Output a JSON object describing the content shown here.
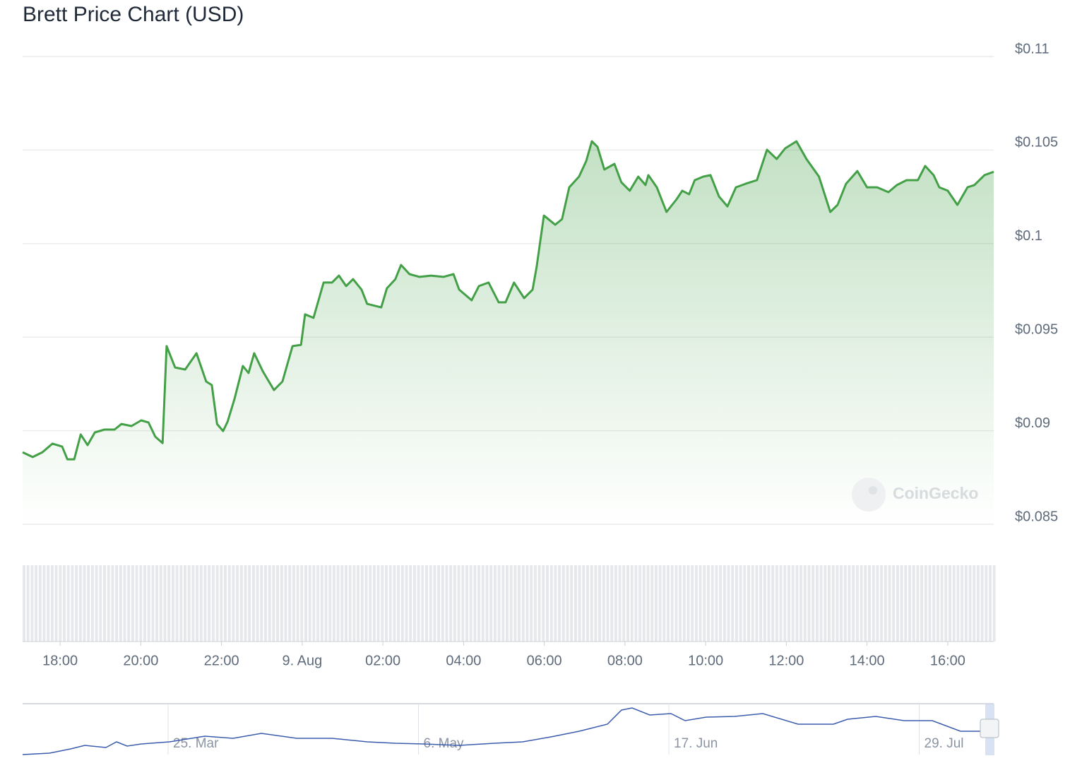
{
  "chart_data": {
    "type": "line",
    "title": "Brett Price Chart (USD)",
    "x": [
      17.07,
      17.32,
      17.56,
      17.81,
      18.05,
      18.18,
      18.35,
      18.51,
      18.68,
      18.86,
      19.1,
      19.35,
      19.52,
      19.77,
      20.01,
      20.19,
      20.36,
      20.54,
      20.64,
      20.85,
      21.1,
      21.38,
      21.62,
      21.76,
      21.89,
      22.04,
      22.15,
      22.32,
      22.53,
      22.67,
      22.81,
      23.02,
      23.3,
      23.51,
      23.76,
      23.97,
      24.07,
      24.28,
      24.53,
      24.74,
      24.91,
      25.09,
      25.26,
      25.47,
      25.61,
      25.96,
      26.1,
      26.31,
      26.45,
      26.66,
      26.91,
      27.19,
      27.5,
      27.75,
      27.89,
      28.2,
      28.38,
      28.62,
      28.87,
      29.04,
      29.25,
      29.5,
      29.71,
      29.81,
      29.99,
      30.27,
      30.44,
      30.62,
      30.86,
      31.04,
      31.18,
      31.32,
      31.49,
      31.74,
      31.91,
      32.12,
      32.33,
      32.51,
      32.58,
      32.79,
      33.03,
      33.28,
      33.42,
      33.59,
      33.73,
      33.94,
      34.12,
      34.33,
      34.54,
      34.75,
      34.99,
      35.27,
      35.52,
      35.76,
      35.97,
      36.25,
      36.5,
      36.81,
      37.09,
      37.27,
      37.48,
      37.76,
      38.0,
      38.25,
      38.53,
      38.74,
      38.98,
      39.26,
      39.44,
      39.65,
      39.79,
      40.0,
      40.24,
      40.49,
      40.66,
      40.91,
      41.14
    ],
    "values": [
      0.08885,
      0.08859,
      0.08885,
      0.08931,
      0.08915,
      0.08847,
      0.08847,
      0.0898,
      0.08923,
      0.08991,
      0.09006,
      0.09006,
      0.09036,
      0.09025,
      0.09055,
      0.09044,
      0.08968,
      0.08934,
      0.09452,
      0.09338,
      0.09327,
      0.09414,
      0.09263,
      0.09244,
      0.09036,
      0.08998,
      0.09048,
      0.09168,
      0.09346,
      0.09308,
      0.09414,
      0.09319,
      0.09217,
      0.09263,
      0.09452,
      0.09459,
      0.09622,
      0.09603,
      0.09792,
      0.09792,
      0.09829,
      0.09773,
      0.0981,
      0.09754,
      0.09678,
      0.09659,
      0.09761,
      0.0981,
      0.09886,
      0.09837,
      0.09822,
      0.09829,
      0.09822,
      0.09837,
      0.09754,
      0.09697,
      0.09773,
      0.09792,
      0.09686,
      0.09686,
      0.09792,
      0.09709,
      0.09754,
      0.09875,
      0.1015,
      0.10101,
      0.10131,
      0.10301,
      0.10358,
      0.10441,
      0.10547,
      0.10517,
      0.10396,
      0.10426,
      0.10328,
      0.10283,
      0.10358,
      0.10313,
      0.10366,
      0.10301,
      0.10169,
      0.10237,
      0.10283,
      0.10264,
      0.10339,
      0.10358,
      0.10366,
      0.10252,
      0.10199,
      0.10301,
      0.1032,
      0.10339,
      0.10502,
      0.10452,
      0.10509,
      0.10547,
      0.10452,
      0.10358,
      0.10169,
      0.10207,
      0.1032,
      0.10388,
      0.10301,
      0.10301,
      0.10275,
      0.10313,
      0.10339,
      0.10339,
      0.10415,
      0.10366,
      0.10301,
      0.10283,
      0.10207,
      0.10301,
      0.10313,
      0.10366,
      0.10384
    ],
    "color": "#43a047",
    "xlim": [
      17.07,
      41.14
    ],
    "ylim": [
      0.085,
      0.11
    ],
    "xticks": [
      {
        "value": 18,
        "label": "18:00"
      },
      {
        "value": 20,
        "label": "20:00"
      },
      {
        "value": 22,
        "label": "22:00"
      },
      {
        "value": 24,
        "label": "9. Aug"
      },
      {
        "value": 26,
        "label": "02:00"
      },
      {
        "value": 28,
        "label": "04:00"
      },
      {
        "value": 30,
        "label": "06:00"
      },
      {
        "value": 32,
        "label": "08:00"
      },
      {
        "value": 34,
        "label": "10:00"
      },
      {
        "value": 36,
        "label": "12:00"
      },
      {
        "value": 38,
        "label": "14:00"
      },
      {
        "value": 40,
        "label": "16:00"
      }
    ],
    "yticks": [
      {
        "value": 0.085,
        "label": "$0.085"
      },
      {
        "value": 0.09,
        "label": "$0.09"
      },
      {
        "value": 0.095,
        "label": "$0.095"
      },
      {
        "value": 0.1,
        "label": "$0.1"
      },
      {
        "value": 0.105,
        "label": "$0.105"
      },
      {
        "value": 0.11,
        "label": "$0.11"
      }
    ],
    "grid": true
  },
  "navigator": {
    "date_labels": [
      "25. Mar",
      "6. May",
      "17. Jun",
      "29. Jul"
    ]
  },
  "watermark": "CoinGecko"
}
